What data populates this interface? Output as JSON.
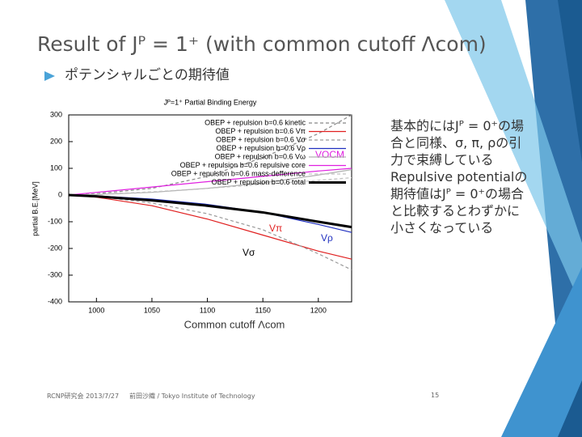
{
  "slide": {
    "title": "Result of Jᴾ = 1⁺ (with common cutoff Λcom)",
    "bullet": "ポテンシャルごとの期待値",
    "notes": [
      "基本的にはJᴾ = 0⁺の場合と同様、σ, π, ρの引力で束縛している",
      "Repulsive potentialの期待値はJᴾ = 0⁺の場合と比較するとわずかに小さくなっている"
    ],
    "footer": {
      "left": "RCNP研究会 2013/7/27",
      "center": "前田沙織 / Tokyo Institute of Technology",
      "page": "15"
    }
  },
  "chart_data": {
    "type": "line",
    "title": "Jᴾ=1⁺ Partial Binding Energy",
    "x_label": "Common cutoff Λcom",
    "y_label": "partial B.E.[MeV]",
    "x": [
      975,
      1000,
      1050,
      1100,
      1150,
      1200,
      1230
    ],
    "xlim": [
      975,
      1230
    ],
    "xticks": [
      1000,
      1050,
      1100,
      1150,
      1200
    ],
    "ylim": [
      -400,
      300
    ],
    "yticks": [
      300,
      200,
      100,
      0,
      -100,
      -200,
      -300,
      -400
    ],
    "legend": "upper left",
    "annotations": [
      "VOCM",
      "Vπ",
      "Vρ",
      "Vσ"
    ],
    "series": [
      {
        "name": "OBEP + repulsion b=0.6 kinetic",
        "color": "#888888",
        "dashed": true,
        "values": [
          0,
          5,
          25,
          70,
          140,
          230,
          300
        ]
      },
      {
        "name": "OBEP + repulsion b=0.6 Vπ",
        "color": "#e02020",
        "values": [
          0,
          -8,
          -40,
          -90,
          -150,
          -210,
          -240
        ]
      },
      {
        "name": "OBEP + repulsion b=0.6 Vσ",
        "color": "#999999",
        "dashed": true,
        "values": [
          0,
          -5,
          -30,
          -70,
          -130,
          -220,
          -280
        ]
      },
      {
        "name": "OBEP + repulsion b=0.6 Vρ",
        "color": "#2030c0",
        "values": [
          0,
          -3,
          -15,
          -35,
          -65,
          -110,
          -140
        ]
      },
      {
        "name": "OBEP + repulsion b=0.6 Vω",
        "color": "#b0b0b0",
        "values": [
          0,
          2,
          10,
          25,
          45,
          75,
          95
        ]
      },
      {
        "name": "OBEP + repulsion b=0.6 repulsive core",
        "color": "#e020e0",
        "values": [
          0,
          10,
          30,
          50,
          70,
          90,
          100
        ]
      },
      {
        "name": "OBEP + repulsion b=0.6 mass-defference",
        "color": "#c0c0c0",
        "dashed": true,
        "values": [
          0,
          3,
          12,
          25,
          40,
          55,
          65
        ]
      },
      {
        "name": "OBEP + repulsion b=0.6 total",
        "color": "#000000",
        "bold": true,
        "values": [
          0,
          -5,
          -20,
          -40,
          -65,
          -100,
          -120
        ]
      }
    ]
  }
}
